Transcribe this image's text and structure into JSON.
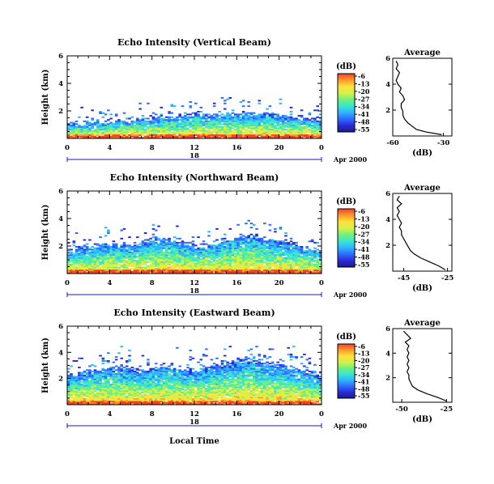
{
  "figure": {
    "date_label": "Apr 2000",
    "xlabel": "Local Time",
    "date_axis_day": "18",
    "colorbar_unit": "(dB)",
    "colorbar_ticks": [
      "-6",
      "-13",
      "-20",
      "-27",
      "-34",
      "-41",
      "-48",
      "-55"
    ],
    "colors": {
      "colormap": [
        "#1a1a8c",
        "#2b2bd6",
        "#2f6cff",
        "#2fb4ff",
        "#39e6d0",
        "#74f07a",
        "#d6f04a",
        "#ffe23a",
        "#ff9a2a",
        "#f2402a"
      ],
      "axis": "#000000",
      "date_axis": "#1a1acc"
    }
  },
  "chart_data": [
    {
      "type": "heatmap",
      "title": "Echo Intensity (Vertical Beam)",
      "ylabel": "Height (km)",
      "x_ticks": [
        "0",
        "4",
        "8",
        "12",
        "16",
        "20",
        "0"
      ],
      "y_ticks": [
        "2",
        "4",
        "6"
      ],
      "xlim": [
        0,
        24
      ],
      "ylim": [
        0,
        6
      ],
      "echo_top_km": [
        1.1,
        1.1,
        1.2,
        1.2,
        1.3,
        1.3,
        1.4,
        1.5,
        1.5,
        1.6,
        1.6,
        1.7,
        1.8,
        1.7,
        1.7,
        1.8,
        1.9,
        1.8,
        1.8,
        1.7,
        1.7,
        1.6,
        1.5,
        1.4,
        1.3
      ],
      "profile": {
        "title": "Average",
        "xlabel": "(dB)",
        "x_ticks": [
          "-60",
          "-30"
        ],
        "y_ticks": [
          "2",
          "4",
          "6"
        ],
        "xlim": [
          -60,
          -25
        ],
        "ylim": [
          0,
          6
        ],
        "heights_km": [
          0.1,
          0.3,
          0.5,
          0.8,
          1.0,
          1.3,
          1.6,
          1.9,
          2.2,
          2.5,
          2.8,
          3.1,
          3.4,
          3.7,
          4.0,
          4.3,
          4.6,
          4.9,
          5.2,
          5.5,
          5.8
        ],
        "values_db": [
          -31,
          -40,
          -46,
          -49,
          -51,
          -53,
          -54,
          -54,
          -55,
          -55,
          -53,
          -54,
          -56,
          -55,
          -57,
          -58,
          -57,
          -56,
          -58,
          -57,
          -58
        ]
      }
    },
    {
      "type": "heatmap",
      "title": "Echo Intensity (Northward Beam)",
      "ylabel": "Height (km)",
      "x_ticks": [
        "0",
        "4",
        "8",
        "12",
        "16",
        "20",
        "0"
      ],
      "y_ticks": [
        "2",
        "4",
        "6"
      ],
      "xlim": [
        0,
        24
      ],
      "ylim": [
        0,
        6
      ],
      "echo_top_km": [
        1.6,
        1.8,
        2.0,
        2.1,
        2.2,
        2.1,
        2.0,
        2.3,
        2.5,
        2.6,
        2.4,
        2.2,
        2.0,
        2.1,
        2.3,
        2.5,
        2.7,
        2.8,
        2.6,
        2.4,
        2.3,
        2.2,
        2.0,
        1.8,
        1.6
      ],
      "profile": {
        "title": "Average",
        "xlabel": "(dB)",
        "x_ticks": [
          "-45",
          "-25"
        ],
        "y_ticks": [
          "2",
          "4",
          "6"
        ],
        "xlim": [
          -50,
          -23
        ],
        "ylim": [
          0,
          6
        ],
        "heights_km": [
          0.1,
          0.4,
          0.7,
          1.0,
          1.3,
          1.6,
          1.9,
          2.2,
          2.5,
          2.8,
          3.1,
          3.4,
          3.7,
          4.0,
          4.3,
          4.6,
          4.9,
          5.2,
          5.5,
          5.8
        ],
        "values_db": [
          -26,
          -29,
          -33,
          -37,
          -40,
          -42,
          -43,
          -44,
          -45,
          -46,
          -46,
          -47,
          -46,
          -47,
          -48,
          -47,
          -48,
          -46,
          -48,
          -47
        ]
      }
    },
    {
      "type": "heatmap",
      "title": "Echo Intensity (Eastward Beam)",
      "ylabel": "Height (km)",
      "xlabel": "Local Time",
      "x_ticks": [
        "0",
        "4",
        "8",
        "12",
        "16",
        "20",
        "0"
      ],
      "y_ticks": [
        "2",
        "4",
        "6"
      ],
      "xlim": [
        0,
        24
      ],
      "ylim": [
        0,
        6
      ],
      "echo_top_km": [
        2.2,
        2.4,
        2.6,
        2.7,
        2.8,
        2.9,
        2.7,
        2.6,
        2.8,
        3.0,
        2.9,
        2.7,
        2.6,
        2.8,
        3.0,
        3.2,
        3.4,
        3.5,
        3.3,
        3.1,
        3.0,
        2.8,
        2.6,
        2.4,
        2.2
      ],
      "profile": {
        "title": "Average",
        "xlabel": "(dB)",
        "x_ticks": [
          "-50",
          "-25"
        ],
        "y_ticks": [
          "2",
          "4",
          "6"
        ],
        "xlim": [
          -55,
          -22
        ],
        "ylim": [
          0,
          6
        ],
        "heights_km": [
          0.1,
          0.4,
          0.7,
          1.0,
          1.3,
          1.6,
          1.9,
          2.2,
          2.5,
          2.8,
          3.1,
          3.4,
          3.7,
          4.0,
          4.3,
          4.6,
          4.9,
          5.2,
          5.5,
          5.8
        ],
        "values_db": [
          -25,
          -30,
          -36,
          -41,
          -44,
          -45,
          -46,
          -46,
          -47,
          -46,
          -47,
          -46,
          -47,
          -46,
          -47,
          -46,
          -48,
          -45,
          -47,
          -49
        ]
      }
    }
  ]
}
